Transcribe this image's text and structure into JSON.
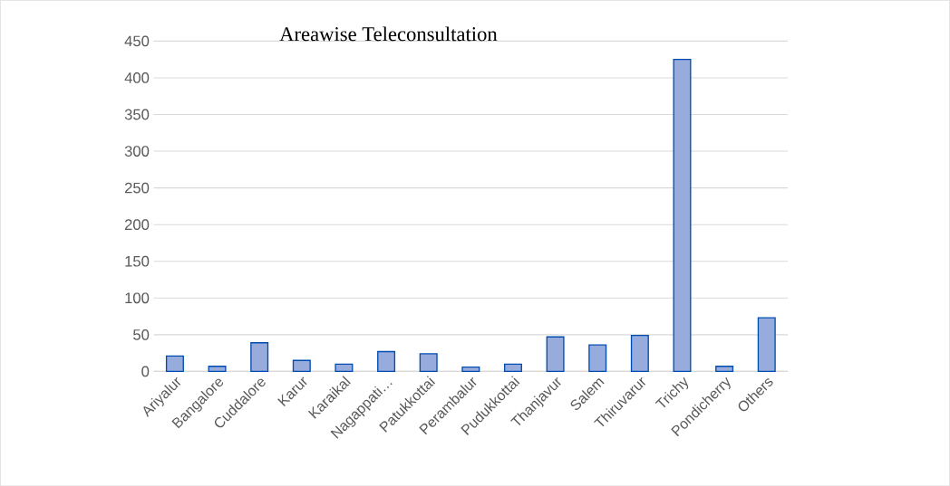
{
  "chart_data": {
    "type": "bar",
    "title": "Areawise Teleconsultation",
    "categories": [
      "Ariyalur",
      "Bangalore",
      "Cuddalore",
      "Karur",
      "Karaikal",
      "Nagappati…",
      "Patukkottai",
      "Perambalur",
      "Pudukkottai",
      "Thanjavur",
      "Salem",
      "Thiruvarur",
      "Trichy",
      "Pondicherry",
      "Others"
    ],
    "values": [
      21,
      7,
      39,
      15,
      10,
      27,
      24,
      6,
      10,
      47,
      36,
      49,
      425,
      7,
      73
    ],
    "color": "#97abdc",
    "ylim": [
      0,
      450
    ],
    "yticks": [
      0,
      50,
      100,
      150,
      200,
      250,
      300,
      350,
      400,
      450
    ],
    "grid": "y"
  }
}
